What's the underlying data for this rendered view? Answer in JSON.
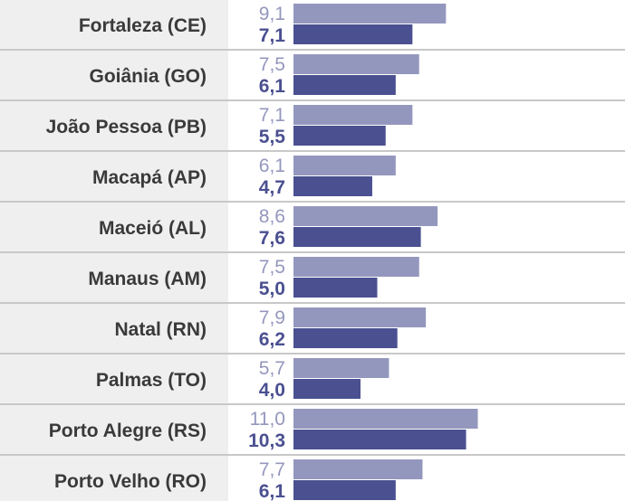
{
  "chart_data": {
    "type": "bar",
    "orientation": "horizontal",
    "categories": [
      "Fortaleza (CE)",
      "Goiânia (GO)",
      "João Pessoa (PB)",
      "Macapá (AP)",
      "Maceió (AL)",
      "Manaus (AM)",
      "Natal (RN)",
      "Palmas (TO)",
      "Porto Alegre (RS)",
      "Porto Velho (RO)"
    ],
    "series": [
      {
        "values": [
          9.1,
          7.5,
          7.1,
          6.1,
          8.6,
          7.5,
          7.9,
          5.7,
          11.0,
          7.7
        ],
        "labels": [
          "9,1",
          "7,5",
          "7,1",
          "6,1",
          "8,6",
          "7,5",
          "7,9",
          "5,7",
          "11,0",
          "7,7"
        ],
        "color": "#9497bd"
      },
      {
        "values": [
          7.1,
          6.1,
          5.5,
          4.7,
          7.6,
          5.0,
          6.2,
          4.0,
          10.3,
          6.1
        ],
        "labels": [
          "7,1",
          "6,1",
          "5,5",
          "4,7",
          "7,6",
          "5,0",
          "6,2",
          "4,0",
          "10,3",
          "6,1"
        ],
        "color": "#4a5090"
      }
    ],
    "title": "",
    "xlabel": "",
    "ylabel": "",
    "xlim": [
      0,
      11.0
    ],
    "grid": false,
    "legend": "none"
  },
  "colors": {
    "label_panel": "#efefef",
    "separator": "#c8c8c8",
    "city_text": "#3a3a3a"
  }
}
